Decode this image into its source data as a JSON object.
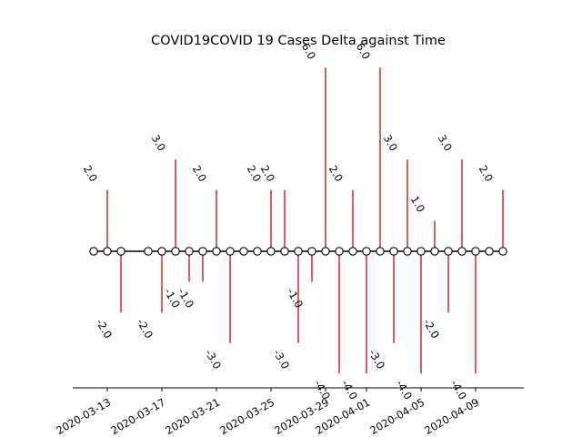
{
  "chart_data": {
    "type": "stem",
    "title": "COVID19COVID 19 Cases Delta against Time",
    "xlabel": "",
    "ylabel": "",
    "x_tick_labels": [
      "2020-03-13",
      "2020-03-17",
      "2020-03-21",
      "2020-03-25",
      "2020-03-29",
      "2020-04-01",
      "2020-04-05",
      "2020-04-09"
    ],
    "points": [
      {
        "date": "2020-03-12",
        "value": 0
      },
      {
        "date": "2020-03-13",
        "value": 2.0
      },
      {
        "date": "2020-03-14",
        "value": -2.0
      },
      {
        "date": "2020-03-16",
        "value": 0
      },
      {
        "date": "2020-03-17",
        "value": -2.0
      },
      {
        "date": "2020-03-18",
        "value": 3.0
      },
      {
        "date": "2020-03-19",
        "value": -1.0
      },
      {
        "date": "2020-03-20",
        "value": -1.0
      },
      {
        "date": "2020-03-21",
        "value": 2.0
      },
      {
        "date": "2020-03-22",
        "value": -3.0
      },
      {
        "date": "2020-03-23",
        "value": 0
      },
      {
        "date": "2020-03-24",
        "value": 0
      },
      {
        "date": "2020-03-25",
        "value": 2.0
      },
      {
        "date": "2020-03-26",
        "value": 2.0
      },
      {
        "date": "2020-03-27",
        "value": -3.0
      },
      {
        "date": "2020-03-28",
        "value": -1.0
      },
      {
        "date": "2020-03-29",
        "value": 6.0
      },
      {
        "date": "2020-03-30",
        "value": -4.0
      },
      {
        "date": "2020-03-31",
        "value": 2.0
      },
      {
        "date": "2020-04-01",
        "value": -4.0
      },
      {
        "date": "2020-04-02",
        "value": 6.0
      },
      {
        "date": "2020-04-03",
        "value": -3.0
      },
      {
        "date": "2020-04-04",
        "value": 3.0
      },
      {
        "date": "2020-04-05",
        "value": -4.0
      },
      {
        "date": "2020-04-06",
        "value": 1.0
      },
      {
        "date": "2020-04-07",
        "value": -2.0
      },
      {
        "date": "2020-04-08",
        "value": 3.0
      },
      {
        "date": "2020-04-09",
        "value": -4.0
      },
      {
        "date": "2020-04-10",
        "value": 0
      },
      {
        "date": "2020-04-11",
        "value": 2.0
      }
    ],
    "ylim": [
      -4.5,
      6.0
    ],
    "colors": {
      "stem": "#d62728",
      "baseline": "#000000",
      "marker_face": "#ffffff",
      "marker_edge": "#000000"
    },
    "grid": false,
    "legend": "none"
  }
}
